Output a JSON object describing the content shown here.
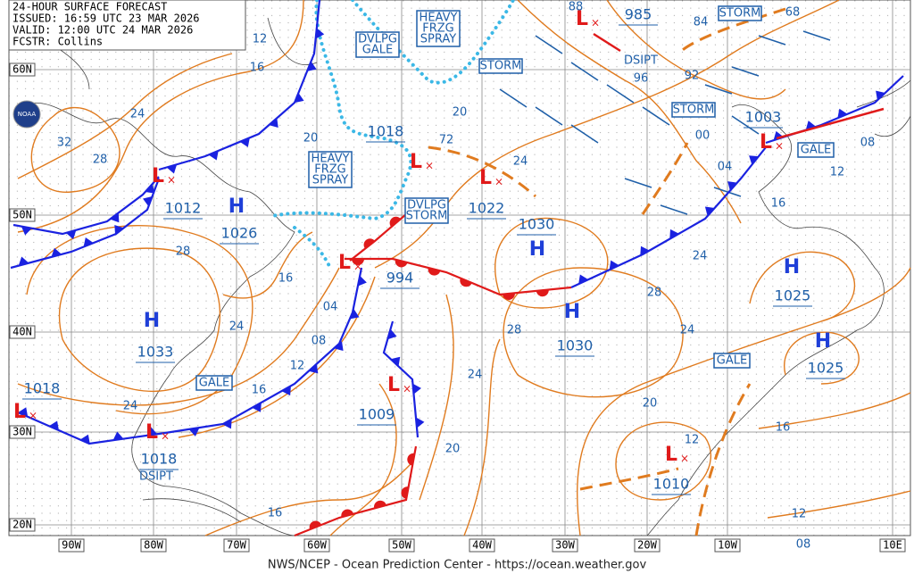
{
  "header": {
    "lines": [
      "24-HOUR SURFACE FORECAST",
      "ISSUED: 16:59 UTC 23 MAR 2026",
      "VALID: 12:00 UTC 24 MAR 2026",
      "FCSTR: Collins"
    ]
  },
  "logo": "NOAA",
  "footer": "NWS/NCEP - Ocean Prediction Center - https://ocean.weather.gov",
  "latitudes": [
    "60N",
    "50N",
    "40N",
    "30N",
    "20N"
  ],
  "longitudes": [
    "90W",
    "80W",
    "70W",
    "60W",
    "50W",
    "40W",
    "30W",
    "20W",
    "10W",
    "10E"
  ],
  "centers": [
    {
      "type": "L",
      "pressure": "985"
    },
    {
      "type": "L",
      "pressure": "1003"
    },
    {
      "type": "L",
      "pressure": "1012"
    },
    {
      "type": "H",
      "pressure": "1026"
    },
    {
      "type": "L",
      "pressure": "1018"
    },
    {
      "type": "L",
      "pressure": "1022"
    },
    {
      "type": "H",
      "pressure": "1030"
    },
    {
      "type": "H",
      "pressure": "1030"
    },
    {
      "type": "L",
      "pressure": "994"
    },
    {
      "type": "H",
      "pressure": "1033"
    },
    {
      "type": "L",
      "pressure": "1009"
    },
    {
      "type": "L",
      "pressure": "1018"
    },
    {
      "type": "L",
      "pressure": "1018"
    },
    {
      "type": "L",
      "pressure": "1010"
    },
    {
      "type": "H",
      "pressure": "1025"
    },
    {
      "type": "H",
      "pressure": "1025"
    }
  ],
  "isobar_labels": [
    "88",
    "72",
    "12",
    "12",
    "16",
    "24",
    "32",
    "28",
    "20",
    "20",
    "24",
    "96",
    "92",
    "84",
    "68",
    "00",
    "04",
    "08",
    "12",
    "16",
    "24",
    "28",
    "28",
    "16",
    "04",
    "08",
    "24",
    "12",
    "16",
    "24",
    "28",
    "24",
    "24",
    "20",
    "20",
    "16",
    "12",
    "16",
    "08"
  ],
  "notes": [
    "DSIPT",
    "DSIPT"
  ],
  "warnings": [
    {
      "lines": [
        "DVLPG",
        "GALE"
      ]
    },
    {
      "lines": [
        "HEAVY",
        "FRZG",
        "SPRAY"
      ]
    },
    {
      "lines": [
        "STORM"
      ]
    },
    {
      "lines": [
        "STORM"
      ]
    },
    {
      "lines": [
        "STORM"
      ]
    },
    {
      "lines": [
        "GALE"
      ]
    },
    {
      "lines": [
        "HEAVY",
        "FRZG",
        "SPRAY"
      ]
    },
    {
      "lines": [
        "DVLPG",
        "STORM"
      ]
    },
    {
      "lines": [
        "GALE"
      ]
    },
    {
      "lines": [
        "GALE"
      ]
    }
  ]
}
